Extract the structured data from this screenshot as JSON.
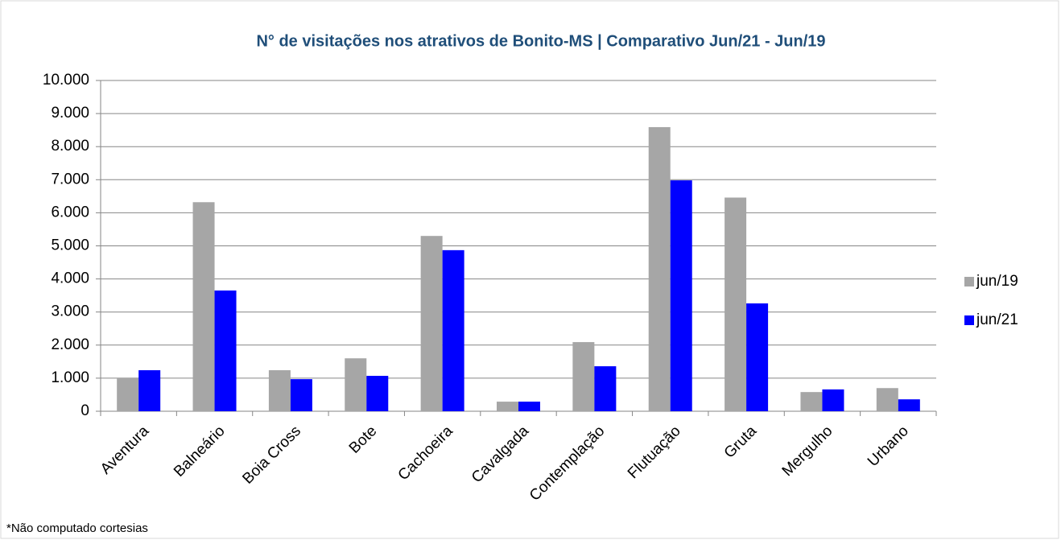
{
  "chart_data": {
    "type": "bar",
    "title": "N° de visitações nos atrativos de Bonito-MS | Comparativo Jun/21 - Jun/19",
    "categories": [
      "Aventura",
      "Balneário",
      "Boia Cross",
      "Bote",
      "Cachoeira",
      "Cavalgada",
      "Contemplação",
      "Flutuação",
      "Gruta",
      "Mergulho",
      "Urbano"
    ],
    "series": [
      {
        "name": "jun/19",
        "color": "#a6a6a6",
        "values": [
          1000,
          6320,
          1240,
          1600,
          5300,
          290,
          2090,
          8590,
          6460,
          580,
          700
        ]
      },
      {
        "name": "jun/21",
        "color": "#0000ff",
        "values": [
          1240,
          3650,
          970,
          1070,
          4870,
          290,
          1360,
          6980,
          3260,
          660,
          360
        ]
      }
    ],
    "ylim": [
      0,
      10000
    ],
    "yticks": [
      0,
      {
        "value": 1000,
        "label": "1.000"
      },
      {
        "value": 2000,
        "label": "2.000"
      },
      {
        "value": 3000,
        "label": "3.000"
      },
      {
        "value": 4000,
        "label": "4.000"
      },
      {
        "value": 5000,
        "label": "5.000"
      },
      {
        "value": 6000,
        "label": "6.000"
      },
      {
        "value": 7000,
        "label": "7.000"
      },
      {
        "value": 8000,
        "label": "8.000"
      },
      {
        "value": 9000,
        "label": "9.000"
      },
      {
        "value": 10000,
        "label": "10.000"
      }
    ],
    "grid": true,
    "legend": "right",
    "note": "*Não computado cortesias"
  }
}
